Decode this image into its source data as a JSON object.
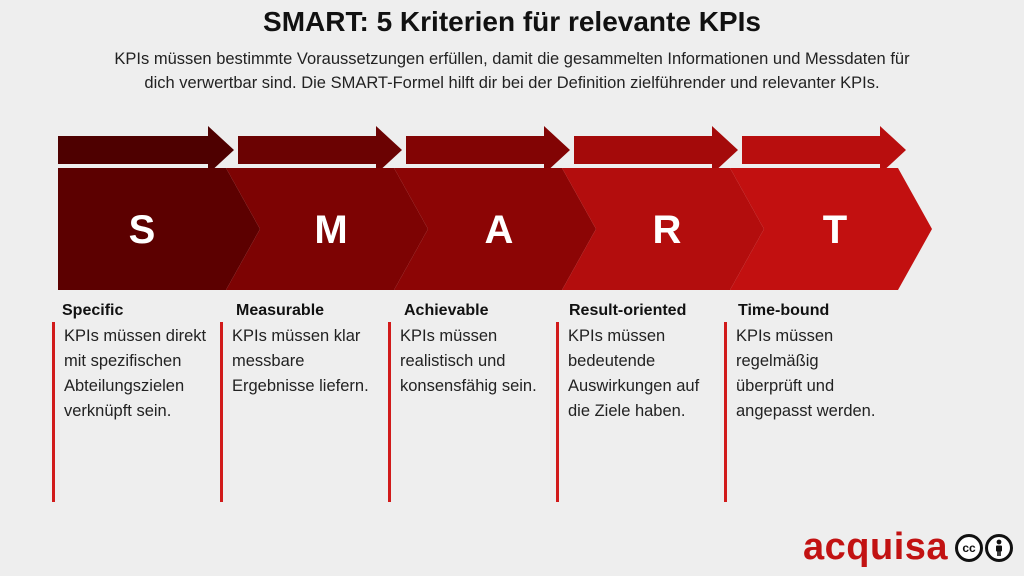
{
  "header": {
    "title": "SMART: 5 Kriterien für relevante KPIs",
    "subtitle": "KPIs müssen bestimmte Voraussetzungen erfüllen, damit die gesammelten Informationen und Messdaten für dich verwertbar sind. Die SMART-Formel hilft dir bei der Definition zielführender und relevanter KPIs."
  },
  "steps": [
    {
      "letter": "S",
      "label": "Specific",
      "desc": "KPIs müssen direkt mit spezifischen Abteilungszielen verknüpft sein.",
      "color": "#5c0000"
    },
    {
      "letter": "M",
      "label": "Measurable",
      "desc": "KPIs müssen klar messbare Ergebnisse liefern.",
      "color": "#7d0303"
    },
    {
      "letter": "A",
      "label": "Achievable",
      "desc": "KPIs müssen realistisch und konsensfähig sein.",
      "color": "#8c0505"
    },
    {
      "letter": "R",
      "label": "Result-oriented",
      "desc": "KPIs müssen bedeutende Auswirkungen auf die Ziele haben.",
      "color": "#b30d0d"
    },
    {
      "letter": "T",
      "label": "Time-bound",
      "desc": "KPIs müssen regelmäßig überprüft und angepasst werden.",
      "color": "#c21010"
    }
  ],
  "small_arrow_colors": [
    "#4e0000",
    "#6b0202",
    "#820404",
    "#a40a0a",
    "#b80e0e"
  ],
  "brand": {
    "logo_text": "acquisa",
    "license_cc": "cc",
    "license_by": "person-icon",
    "accent": "#c21212"
  }
}
